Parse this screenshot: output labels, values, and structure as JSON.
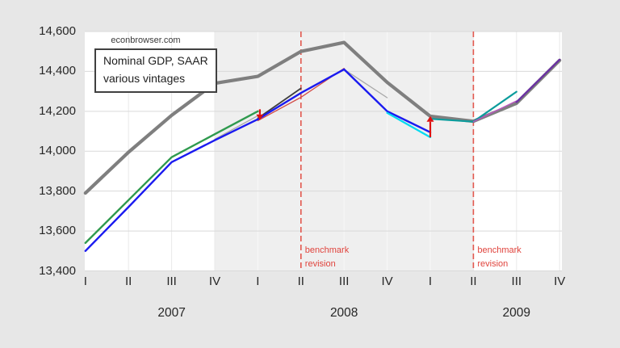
{
  "page": {
    "background": "#e7e7e7",
    "plot_background": "#ffffff",
    "recession_band_color": "#efefef",
    "h_gridline_color": "#d9d9d9",
    "v_gridline_color_outside": "#e9e9e9",
    "v_gridline_color_inside": "#f8f8f8"
  },
  "watermark": "econbrowser.com",
  "title_box": {
    "line1": "Nominal GDP, SAAR",
    "line2": "various vintages"
  },
  "benchmark_label": {
    "line1": "benchmark",
    "line2": "revision"
  },
  "chart_data": {
    "type": "line",
    "title": "Nominal GDP, SAAR, various vintages",
    "xlabel": "",
    "ylabel": "",
    "ylim": [
      13400,
      14600
    ],
    "grid": "on",
    "legend_position": "none",
    "y_ticks": [
      {
        "value": 13400,
        "label": "13,400"
      },
      {
        "value": 13600,
        "label": "13,600"
      },
      {
        "value": 13800,
        "label": "13,800"
      },
      {
        "value": 14000,
        "label": "14,000"
      },
      {
        "value": 14200,
        "label": "14,200"
      },
      {
        "value": 14400,
        "label": "14,400"
      },
      {
        "value": 14600,
        "label": "14,600"
      }
    ],
    "x_tick_labels": [
      "I",
      "II",
      "III",
      "IV",
      "I",
      "II",
      "III",
      "IV",
      "I",
      "II",
      "III",
      "IV"
    ],
    "year_labels": [
      {
        "label": "2007",
        "center_tick": 2
      },
      {
        "label": "2008",
        "center_tick": 6
      },
      {
        "label": "2009",
        "center_tick": 10
      }
    ],
    "recession_band": {
      "from_tick": 3,
      "to_tick": 9
    },
    "benchmark_revisions": [
      {
        "tick": 5,
        "quarter": "2008-II"
      },
      {
        "tick": 9,
        "quarter": "2009-II"
      }
    ],
    "dashed_line_color": "#e2574e",
    "series": [
      {
        "name": "latest-vintage-gray",
        "color": "#7f7f7f",
        "width": 4.2,
        "start": 0,
        "values": [
          13790,
          13995,
          14180,
          14340,
          14375,
          14500,
          14545,
          14345,
          14175,
          14150,
          14240,
          14455
        ]
      },
      {
        "name": "thin-gray-2007-vintage",
        "color": "#a8a8a8",
        "width": 1.3,
        "start": 3,
        "values": [
          14060,
          14178
        ]
      },
      {
        "name": "thin-gray-2008-vintage",
        "color": "#a8a8a8",
        "width": 1.3,
        "start": 6,
        "values": [
          14410,
          14268
        ]
      },
      {
        "name": "dark-gray-segment-2008",
        "color": "#3d3d3d",
        "width": 1.8,
        "start": 4,
        "values": [
          14165,
          14315
        ]
      },
      {
        "name": "thin-red-2008-vintage",
        "color": "#d24a45",
        "width": 1.3,
        "start": 4,
        "values": [
          14153,
          14270,
          14415
        ]
      },
      {
        "name": "green-vintage",
        "color": "#2f9a4e",
        "width": 2.4,
        "start": 0,
        "values": [
          13540,
          13755,
          13970,
          14085,
          14200
        ]
      },
      {
        "name": "blue-vintage",
        "color": "#1a1af0",
        "width": 2.4,
        "start": 0,
        "values": [
          13500,
          13720,
          13945,
          14055,
          14160,
          14292,
          14410,
          14200,
          14095
        ]
      },
      {
        "name": "cyan-vintage-2009q1",
        "color": "#00daf0",
        "width": 2.2,
        "start": 7,
        "values": [
          14192,
          14070
        ]
      },
      {
        "name": "teal-vintage-2009",
        "color": "#0b9c9c",
        "width": 2.2,
        "start": 8,
        "values": [
          14162,
          14148,
          14298
        ]
      },
      {
        "name": "magenta-thin-2009",
        "color": "#b855be",
        "width": 1.4,
        "start": 9,
        "values": [
          14148,
          14252
        ]
      },
      {
        "name": "purple-vintage-2009q4",
        "color": "#6b30a3",
        "width": 2.3,
        "start": 10,
        "values": [
          14246,
          14459
        ]
      }
    ],
    "arrows": [
      {
        "name": "revision-arrow-down-2008q1",
        "tick": 4,
        "dx": 2.5,
        "from": 14210,
        "to": 14156,
        "color": "#dd1111"
      },
      {
        "name": "revision-arrow-up-2009q1",
        "tick": 8,
        "dx": 0,
        "from": 14070,
        "to": 14176,
        "color": "#dd1111"
      }
    ]
  }
}
